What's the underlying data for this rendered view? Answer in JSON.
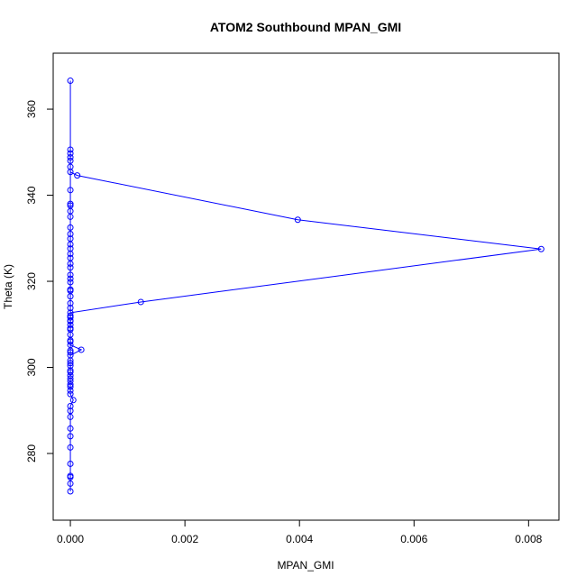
{
  "chart_data": {
    "type": "line",
    "title": "ATOM2 Southbound MPAN_GMI",
    "xlabel": "MPAN_GMI",
    "ylabel": "Theta (K)",
    "xlim": [
      -0.0003,
      0.00853
    ],
    "ylim": [
      264.5,
      373
    ],
    "x_ticks": [
      0,
      0.002,
      0.004,
      0.006,
      0.008
    ],
    "x_tick_labels": [
      "0.000",
      "0.002",
      "0.004",
      "0.006",
      "0.008"
    ],
    "y_ticks": [
      280,
      300,
      320,
      340,
      360
    ],
    "y_tick_labels": [
      "280",
      "300",
      "320",
      "340",
      "360"
    ],
    "grid": false,
    "marker": "open-circle",
    "color": "#0000ff",
    "series": [
      {
        "points": [
          [
            0.0,
            271.2
          ],
          [
            0.0,
            273.0
          ],
          [
            0.0,
            274.5
          ],
          [
            0.0,
            274.8
          ],
          [
            0.0,
            277.6
          ],
          [
            0.0,
            281.4
          ],
          [
            0.0,
            284.0
          ],
          [
            0.0,
            285.8
          ],
          [
            0.0,
            288.5
          ],
          [
            0.0,
            289.9
          ],
          [
            0.0,
            291.0
          ],
          [
            5e-05,
            292.4
          ],
          [
            0.0,
            293.8
          ],
          [
            0.0,
            294.6
          ],
          [
            0.0,
            295.5
          ],
          [
            0.0,
            296.8
          ],
          [
            0.0,
            298.1
          ],
          [
            0.0,
            299.3
          ],
          [
            0.0,
            300.4
          ],
          [
            0.0,
            301.6
          ],
          [
            0.0,
            302.8
          ],
          [
            0.00019,
            304.1
          ],
          [
            0.0,
            305.2
          ],
          [
            0.0,
            306.3
          ],
          [
            0.0,
            307.6
          ],
          [
            0.0,
            308.8
          ],
          [
            0.0,
            309.9
          ],
          [
            0.0,
            310.7
          ],
          [
            0.0,
            311.6
          ],
          [
            0.0,
            312.7
          ],
          [
            0.00123,
            315.2
          ],
          [
            0.00822,
            327.5
          ],
          [
            0.00397,
            334.3
          ],
          [
            0.00012,
            344.6
          ],
          [
            0.0,
            345.4
          ],
          [
            0.0,
            341.2
          ],
          [
            0.0,
            337.6
          ],
          [
            0.0,
            335.0
          ],
          [
            0.0,
            332.5
          ],
          [
            0.0,
            329.9
          ],
          [
            0.0,
            327.6
          ],
          [
            0.0,
            325.4
          ],
          [
            0.0,
            323.2
          ],
          [
            0.0,
            321.5
          ],
          [
            0.0,
            319.8
          ],
          [
            0.0,
            318.1
          ],
          [
            0.0,
            316.5
          ],
          [
            0.0,
            314.9
          ],
          [
            0.0,
            313.8
          ],
          [
            0.0,
            312.0
          ],
          [
            0.0,
            310.9
          ],
          [
            0.0,
            309.1
          ],
          [
            0.0,
            306.0
          ],
          [
            0.0,
            303.5
          ],
          [
            0.0,
            301.0
          ],
          [
            0.0,
            298.9
          ],
          [
            0.0,
            297.4
          ],
          [
            0.0,
            296.0
          ],
          [
            0.0,
            303.9
          ],
          [
            0.0,
            317.8
          ],
          [
            0.0,
            320.6
          ],
          [
            0.0,
            324.1
          ],
          [
            0.0,
            326.4
          ],
          [
            0.0,
            328.6
          ],
          [
            0.0,
            331.0
          ],
          [
            0.0,
            336.3
          ],
          [
            0.0,
            338.0
          ],
          [
            0.0,
            346.6
          ],
          [
            0.0,
            348.0
          ],
          [
            0.0,
            348.8
          ],
          [
            0.0,
            349.7
          ],
          [
            0.0,
            350.6
          ],
          [
            0.0,
            366.6
          ]
        ]
      }
    ]
  }
}
